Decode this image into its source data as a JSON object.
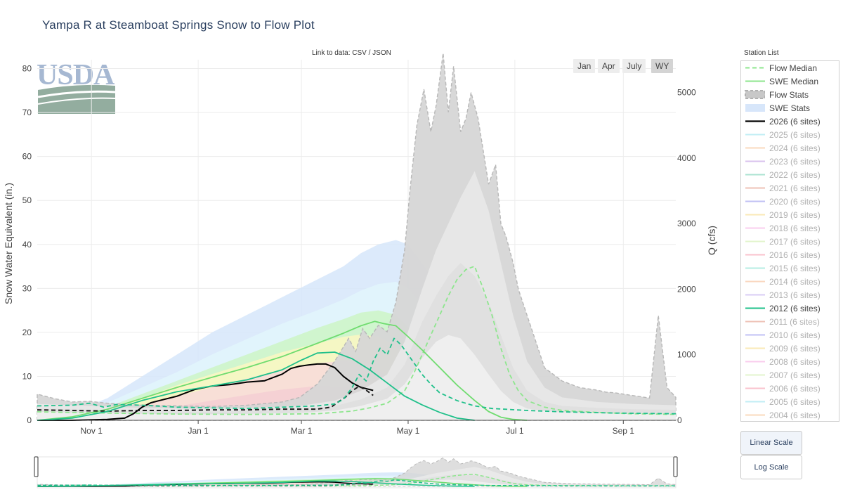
{
  "title": "Yampa R at Steamboat Springs Snow to Flow Plot",
  "link_text": "Link to data: CSV / JSON",
  "logo_text": "USDA",
  "range_buttons": [
    "Jan",
    "Apr",
    "July",
    "WY"
  ],
  "range_active": "WY",
  "legend_title": "Station List",
  "scale_buttons": [
    "Linear Scale",
    "Log Scale"
  ],
  "scale_active": "Linear Scale",
  "legend": [
    {
      "label": "Flow Median",
      "kind": "dash",
      "color": "#8ee68e",
      "active": true
    },
    {
      "label": "SWE Median",
      "kind": "line",
      "color": "#8ee68e",
      "active": true
    },
    {
      "label": "Flow Stats",
      "kind": "dashband",
      "color": "#c8c8c8",
      "active": true
    },
    {
      "label": "SWE Stats",
      "kind": "band",
      "color": "#d7e6fa",
      "active": true
    },
    {
      "label": "2026 (6 sites)",
      "kind": "line",
      "color": "#000000",
      "active": true
    },
    {
      "label": "2025 (6 sites)",
      "kind": "line",
      "color": "#a8e8f0",
      "active": false
    },
    {
      "label": "2024 (6 sites)",
      "kind": "line",
      "color": "#f8c9a0",
      "active": false
    },
    {
      "label": "2023 (6 sites)",
      "kind": "line",
      "color": "#c9a8e8",
      "active": false
    },
    {
      "label": "2022 (6 sites)",
      "kind": "line",
      "color": "#88d8c0",
      "active": false
    },
    {
      "label": "2021 (6 sites)",
      "kind": "line",
      "color": "#e8a898",
      "active": false
    },
    {
      "label": "2020 (6 sites)",
      "kind": "line",
      "color": "#a8a8f0",
      "active": false
    },
    {
      "label": "2019 (6 sites)",
      "kind": "line",
      "color": "#f8e098",
      "active": false
    },
    {
      "label": "2018 (6 sites)",
      "kind": "line",
      "color": "#f8b8e8",
      "active": false
    },
    {
      "label": "2017 (6 sites)",
      "kind": "line",
      "color": "#d8f0b8",
      "active": false
    },
    {
      "label": "2016 (6 sites)",
      "kind": "line",
      "color": "#f8a8b8",
      "active": false
    },
    {
      "label": "2015 (6 sites)",
      "kind": "line",
      "color": "#98e8d8",
      "active": false
    },
    {
      "label": "2014 (6 sites)",
      "kind": "line",
      "color": "#f8c8a8",
      "active": false
    },
    {
      "label": "2013 (6 sites)",
      "kind": "line",
      "color": "#c8b8f0",
      "active": false
    },
    {
      "label": "2012 (6 sites)",
      "kind": "line",
      "color": "#1fc08a",
      "active": true
    },
    {
      "label": "2011 (6 sites)",
      "kind": "line",
      "color": "#e8a898",
      "active": false
    },
    {
      "label": "2010 (6 sites)",
      "kind": "line",
      "color": "#a8a8f0",
      "active": false
    },
    {
      "label": "2009 (6 sites)",
      "kind": "line",
      "color": "#f8e098",
      "active": false
    },
    {
      "label": "2008 (6 sites)",
      "kind": "line",
      "color": "#f8b8e8",
      "active": false
    },
    {
      "label": "2007 (6 sites)",
      "kind": "line",
      "color": "#d8f0b8",
      "active": false
    },
    {
      "label": "2006 (6 sites)",
      "kind": "line",
      "color": "#f8a8b8",
      "active": false
    },
    {
      "label": "2005 (6 sites)",
      "kind": "line",
      "color": "#a8e8f0",
      "active": false
    },
    {
      "label": "2004 (6 sites)",
      "kind": "line",
      "color": "#f8c9a0",
      "active": false
    }
  ],
  "chart_data": {
    "type": "line",
    "title": "Yampa R at Steamboat Springs Snow to Flow Plot",
    "x_axis": {
      "ticks": [
        "Nov 1",
        "Jan 1",
        "Mar 1",
        "May 1",
        "Jul 1",
        "Sep 1"
      ],
      "tick_days": [
        31,
        92,
        151,
        212,
        273,
        335
      ],
      "range_days": [
        0,
        365
      ]
    },
    "y_left": {
      "label": "Snow Water Equivalent (in.)",
      "range": [
        0,
        82
      ],
      "ticks": [
        0,
        10,
        20,
        30,
        40,
        50,
        60,
        70,
        80
      ]
    },
    "y_right": {
      "label": "Q (cfs)",
      "range": [
        0,
        5500
      ],
      "ticks": [
        0,
        1000,
        2000,
        3000,
        4000,
        5000
      ]
    },
    "grid": true,
    "swe_stats_bands": [
      {
        "name": "max",
        "color": "#d6e6fa",
        "x": [
          0,
          20,
          40,
          60,
          80,
          100,
          120,
          140,
          160,
          175,
          185,
          195,
          205,
          212,
          225,
          240,
          255,
          265,
          275,
          285,
          300
        ],
        "y": [
          0,
          2,
          5,
          10,
          15,
          20,
          24,
          28,
          32,
          35,
          38,
          40,
          41,
          40,
          33,
          22,
          12,
          5,
          2,
          0.5,
          0
        ]
      },
      {
        "name": "p90",
        "color": "#e2f6fb",
        "x": [
          0,
          20,
          40,
          60,
          80,
          100,
          120,
          140,
          160,
          175,
          185,
          195,
          205,
          212,
          225,
          240,
          255,
          265,
          275,
          290
        ],
        "y": [
          0,
          1.5,
          4,
          7.5,
          11,
          15,
          18.5,
          22,
          25,
          27.5,
          29.5,
          31,
          31.5,
          30,
          24,
          15,
          7,
          3,
          1,
          0
        ]
      },
      {
        "name": "p70",
        "color": "#ccf4c6",
        "x": [
          0,
          20,
          40,
          60,
          80,
          100,
          120,
          140,
          160,
          175,
          185,
          195,
          205,
          215,
          225,
          240,
          250,
          260,
          270,
          280
        ],
        "y": [
          0,
          1,
          3,
          6,
          9,
          12,
          15,
          18,
          21,
          23,
          24.5,
          25,
          24,
          20,
          16,
          9,
          4,
          1.5,
          0.5,
          0
        ]
      },
      {
        "name": "p50",
        "color": "#fbf7c2",
        "x": [
          0,
          20,
          40,
          60,
          80,
          100,
          120,
          140,
          160,
          175,
          185,
          195,
          205,
          215,
          225,
          240,
          250,
          260,
          270
        ],
        "y": [
          0,
          0.8,
          2.5,
          5,
          8,
          10.5,
          13,
          15.5,
          17.5,
          19,
          19.5,
          19,
          17,
          13,
          9,
          4,
          1.5,
          0.4,
          0
        ]
      },
      {
        "name": "p30",
        "color": "#f8dada",
        "x": [
          0,
          20,
          40,
          60,
          80,
          100,
          120,
          140,
          160,
          175,
          185,
          195,
          205,
          215,
          225,
          240,
          255
        ],
        "y": [
          0,
          0.5,
          1.8,
          3.5,
          5.5,
          7.5,
          9.5,
          11.5,
          13,
          13.5,
          13,
          11.5,
          9,
          6,
          3.5,
          1,
          0
        ]
      },
      {
        "name": "p10",
        "color": "#f5cfd4",
        "x": [
          0,
          20,
          40,
          60,
          80,
          100,
          120,
          140,
          160,
          175,
          185,
          195,
          205,
          215,
          230,
          245
        ],
        "y": [
          0,
          0.3,
          1,
          2,
          3.2,
          4.5,
          5.8,
          7,
          7.8,
          7.6,
          6.8,
          5.5,
          3.8,
          2,
          0.5,
          0
        ]
      }
    ],
    "flow_stats_bands": [
      {
        "name": "max",
        "color": "#d6d6d6",
        "x": [
          0,
          10,
          20,
          30,
          40,
          60,
          80,
          100,
          120,
          140,
          150,
          160,
          170,
          178,
          182,
          186,
          190,
          195,
          200,
          205,
          210,
          213,
          217,
          221,
          225,
          228,
          232,
          235,
          238,
          242,
          245,
          248,
          252,
          255,
          258,
          262,
          265,
          268,
          272,
          275,
          280,
          285,
          290,
          295,
          300,
          305,
          310,
          315,
          320,
          325,
          330,
          335,
          340,
          345,
          350,
          355,
          360,
          365
        ],
        "y": [
          400,
          330,
          280,
          290,
          260,
          230,
          220,
          210,
          230,
          280,
          350,
          550,
          900,
          1250,
          1050,
          1400,
          1250,
          1450,
          1350,
          1800,
          2600,
          3500,
          4500,
          5050,
          4400,
          4800,
          5600,
          4700,
          5400,
          4400,
          4600,
          5000,
          4600,
          4100,
          3600,
          3900,
          3000,
          2800,
          2400,
          2000,
          1600,
          1200,
          800,
          700,
          600,
          550,
          500,
          480,
          460,
          430,
          420,
          400,
          380,
          360,
          340,
          1600,
          500,
          350
        ]
      },
      {
        "name": "p70",
        "color": "#ebebeb",
        "x": [
          0,
          30,
          60,
          90,
          120,
          150,
          170,
          185,
          200,
          210,
          220,
          228,
          235,
          242,
          250,
          258,
          265,
          272,
          280,
          290,
          300,
          320,
          340,
          365
        ],
        "y": [
          250,
          220,
          190,
          180,
          190,
          220,
          300,
          450,
          700,
          1200,
          2000,
          2600,
          3000,
          3400,
          3800,
          3200,
          2400,
          1600,
          900,
          500,
          350,
          280,
          250,
          230
        ]
      },
      {
        "name": "p50",
        "color": "#dedede",
        "x": [
          0,
          30,
          60,
          90,
          120,
          150,
          170,
          185,
          200,
          210,
          220,
          228,
          235,
          242,
          250,
          258,
          265,
          272,
          280,
          290,
          300,
          320,
          340,
          365
        ],
        "y": [
          180,
          160,
          140,
          130,
          140,
          160,
          220,
          320,
          500,
          850,
          1500,
          1900,
          2200,
          2400,
          2200,
          1800,
          1300,
          800,
          450,
          280,
          220,
          190,
          170,
          160
        ]
      },
      {
        "name": "p30",
        "color": "#f2f2f2",
        "x": [
          0,
          30,
          60,
          90,
          120,
          150,
          170,
          185,
          200,
          210,
          220,
          228,
          235,
          242,
          250,
          258,
          265,
          272,
          280,
          290,
          300,
          320,
          340,
          365
        ],
        "y": [
          130,
          110,
          100,
          90,
          100,
          110,
          150,
          220,
          330,
          550,
          950,
          1200,
          1300,
          1250,
          1000,
          700,
          450,
          280,
          180,
          140,
          120,
          110,
          100,
          100
        ]
      }
    ],
    "series": [
      {
        "name": "Flow Median",
        "axis": "right",
        "style": "dash",
        "color": "#8ee68e",
        "x": [
          0,
          40,
          80,
          120,
          160,
          180,
          190,
          200,
          210,
          215,
          220,
          225,
          230,
          235,
          240,
          245,
          250,
          255,
          260,
          265,
          270,
          275,
          280,
          290,
          300,
          320,
          340,
          365
        ],
        "y": [
          130,
          110,
          95,
          90,
          100,
          140,
          190,
          260,
          450,
          700,
          1000,
          1300,
          1600,
          1900,
          2150,
          2300,
          2350,
          2000,
          1600,
          1100,
          700,
          450,
          300,
          200,
          150,
          120,
          100,
          90
        ]
      },
      {
        "name": "SWE Median",
        "axis": "left",
        "style": "solid",
        "color": "#6fdc6f",
        "x": [
          0,
          20,
          40,
          60,
          80,
          100,
          120,
          140,
          160,
          175,
          185,
          193,
          198,
          205,
          212,
          220,
          230,
          240,
          250,
          258,
          265,
          272,
          280
        ],
        "y": [
          0,
          0.8,
          2.5,
          5,
          7.5,
          9.8,
          12,
          14.5,
          17.5,
          19.8,
          21.5,
          22.5,
          22,
          21.5,
          19,
          16,
          12,
          8,
          4.5,
          2,
          0.7,
          0.2,
          0
        ]
      },
      {
        "name": "2026 (6 sites)",
        "axis": "left",
        "style": "solid",
        "color": "#000000",
        "x": [
          0,
          20,
          40,
          50,
          55,
          60,
          65,
          70,
          80,
          90,
          100,
          110,
          120,
          130,
          140,
          145,
          150,
          155,
          160,
          165,
          170,
          175,
          180,
          185,
          190,
          192
        ],
        "y": [
          0,
          0,
          0.2,
          0.5,
          1.5,
          3,
          4,
          4.5,
          5.5,
          7,
          7.8,
          8.1,
          8.7,
          9,
          10.5,
          11.8,
          12.3,
          12.6,
          12.8,
          12.8,
          12,
          10,
          8.5,
          7.5,
          7,
          6.8
        ]
      },
      {
        "name": "2026 Flow",
        "axis": "right",
        "style": "dash",
        "color": "#1a1a1a",
        "x": [
          0,
          20,
          40,
          60,
          80,
          100,
          120,
          140,
          160,
          168,
          172,
          176,
          180,
          184,
          188,
          192
        ],
        "y": [
          160,
          150,
          140,
          150,
          150,
          160,
          160,
          170,
          170,
          200,
          280,
          350,
          450,
          520,
          460,
          380
        ]
      },
      {
        "name": "2012 (6 sites)",
        "axis": "left",
        "style": "solid",
        "color": "#1fc08a",
        "x": [
          0,
          20,
          40,
          60,
          80,
          100,
          120,
          140,
          150,
          160,
          170,
          180,
          190,
          200,
          210,
          220,
          230,
          240,
          250
        ],
        "y": [
          0,
          0.5,
          2,
          4.5,
          6.5,
          7.8,
          9.2,
          11.5,
          13.5,
          15.3,
          15.5,
          14,
          11.5,
          8.5,
          5.5,
          3.5,
          1.8,
          0.5,
          0
        ]
      },
      {
        "name": "2012 Flow",
        "axis": "right",
        "style": "dash",
        "color": "#1fc08a",
        "x": [
          0,
          20,
          30,
          38,
          45,
          60,
          80,
          100,
          120,
          140,
          160,
          170,
          175,
          180,
          184,
          188,
          192,
          196,
          200,
          204,
          208,
          212,
          216,
          220,
          225,
          230,
          240,
          250,
          260,
          280,
          300,
          330,
          365
        ],
        "y": [
          220,
          230,
          260,
          200,
          240,
          230,
          200,
          190,
          180,
          200,
          220,
          250,
          320,
          500,
          700,
          600,
          900,
          1100,
          1000,
          1250,
          1150,
          1000,
          850,
          700,
          550,
          420,
          300,
          220,
          180,
          150,
          130,
          110,
          100
        ]
      }
    ]
  }
}
